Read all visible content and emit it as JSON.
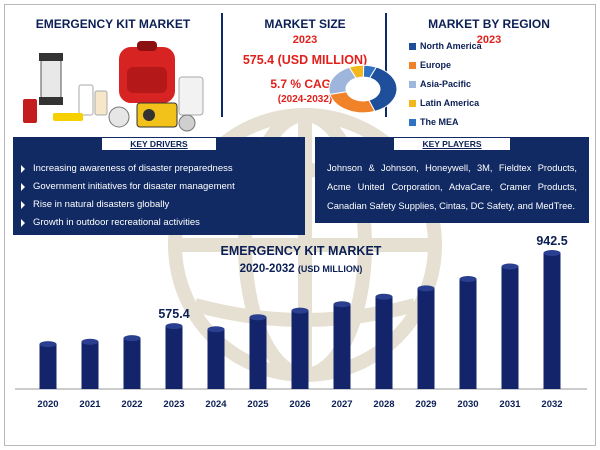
{
  "header": {
    "main_title": "EMERGENCY KIT MARKET",
    "size_title": "MARKET SIZE",
    "size_year": "2023",
    "size_value": "575.4 (USD MILLION)",
    "cagr": "5.7 % CAGR",
    "cagr_period": "(2024-2032)",
    "region_title": "MARKET BY REGION",
    "region_year": "2023"
  },
  "regions": [
    {
      "name": "North America",
      "color": "#1f4e9a"
    },
    {
      "name": "Europe",
      "color": "#f0822a"
    },
    {
      "name": "Asia-Pacific",
      "color": "#9eb6dc"
    },
    {
      "name": "Latin America",
      "color": "#f2b71a"
    },
    {
      "name": "The MEA",
      "color": "#2f72c4"
    }
  ],
  "drivers": {
    "title": "KEY DRIVERS",
    "items": [
      "Increasing awareness of disaster preparedness",
      "Government initiatives for disaster management",
      "Rise in natural disasters globally",
      "Growth in outdoor recreational activities"
    ]
  },
  "players": {
    "title": "KEY PLAYERS",
    "text": "Johnson & Johnson, Honeywell, 3M, Fieldtex Products, Acme United Corporation, AdvaCare, Cramer Products, Canadian Safety Supplies, Cintas, DC Safety, and MedTree."
  },
  "chart_data": {
    "type": "bar",
    "title": "EMERGENCY KIT MARKET",
    "subtitle": "2020-2032",
    "subtitle_unit": "(USD MILLION)",
    "categories": [
      "2020",
      "2021",
      "2022",
      "2023",
      "2024",
      "2025",
      "2026",
      "2027",
      "2028",
      "2029",
      "2030",
      "2031",
      "2032"
    ],
    "values": [
      485,
      497,
      515,
      575.4,
      560,
      620,
      653,
      685,
      723,
      765,
      812,
      875,
      942.5
    ],
    "labels": {
      "2023": "575.4",
      "2032": "942.5"
    },
    "bar_color": "#13246b",
    "ylim": [
      0,
      1000
    ]
  },
  "donut": {
    "shares": [
      0.38,
      0.27,
      0.22,
      0.07,
      0.06
    ]
  }
}
